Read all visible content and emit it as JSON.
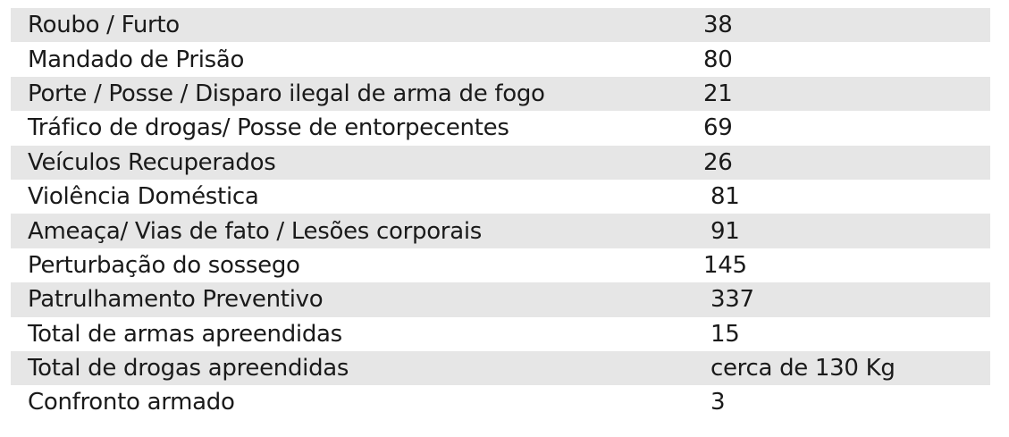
{
  "rows": [
    {
      "label": "Roubo / Furto",
      "value": "38"
    },
    {
      "label": "Mandado de Prisão",
      "value": "80"
    },
    {
      "label": "Porte / Posse / Disparo ilegal de arma de fogo",
      "value": "21"
    },
    {
      "label": "Tráfico de drogas/ Posse de entorpecentes",
      "value": "69"
    },
    {
      "label": "Veículos Recuperados",
      "value": "26"
    },
    {
      "label": "Violência Doméstica",
      "value": " 81"
    },
    {
      "label": "Ameaça/ Vias de fato / Lesões corporais",
      "value": " 91"
    },
    {
      "label": "Perturbação do sossego",
      "value": "145"
    },
    {
      "label": "Patrulhamento Preventivo",
      "value": " 337"
    },
    {
      "label": "Total de armas apreendidas",
      "value": " 15"
    },
    {
      "label": "Total de drogas apreendidas",
      "value": " cerca de 130 Kg"
    },
    {
      "label": "Confronto armado",
      "value": " 3"
    }
  ]
}
